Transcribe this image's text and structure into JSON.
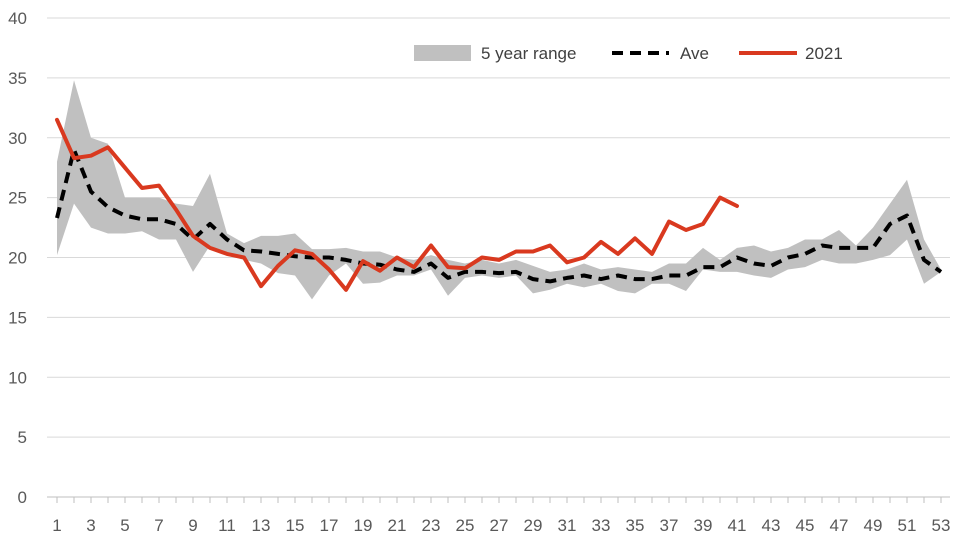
{
  "chart_data": {
    "type": "line",
    "title": "",
    "xlabel": "",
    "ylabel": "",
    "ylim": [
      0,
      40
    ],
    "xlim": [
      1,
      53
    ],
    "grid": "horizontal",
    "legend_position": "top-right",
    "y_ticks": [
      "0",
      "5",
      "10",
      "15",
      "20",
      "25",
      "30",
      "35",
      "40"
    ],
    "x_ticks": [
      "1",
      "3",
      "5",
      "7",
      "9",
      "11",
      "13",
      "15",
      "17",
      "19",
      "21",
      "23",
      "25",
      "27",
      "29",
      "31",
      "33",
      "35",
      "37",
      "39",
      "41",
      "43",
      "45",
      "47",
      "49",
      "51",
      "53"
    ],
    "legend": [
      {
        "key": "range",
        "label": "5 year range"
      },
      {
        "key": "ave",
        "label": "Ave"
      },
      {
        "key": "y2021",
        "label": "2021"
      }
    ],
    "colors": {
      "range": "#c0c0c0",
      "ave": "#000000",
      "y2021": "#d9391f",
      "grid": "#d9d9d9",
      "axis": "#bfbfbf"
    },
    "x": [
      1,
      2,
      3,
      4,
      5,
      6,
      7,
      8,
      9,
      10,
      11,
      12,
      13,
      14,
      15,
      16,
      17,
      18,
      19,
      20,
      21,
      22,
      23,
      24,
      25,
      26,
      27,
      28,
      29,
      30,
      31,
      32,
      33,
      34,
      35,
      36,
      37,
      38,
      39,
      40,
      41,
      42,
      43,
      44,
      45,
      46,
      47,
      48,
      49,
      50,
      51,
      52,
      53
    ],
    "series": [
      {
        "name": "5 year range",
        "kind": "band",
        "low": [
          20.2,
          24.5,
          22.5,
          22.0,
          22.0,
          22.2,
          21.5,
          21.5,
          18.8,
          21.0,
          20.2,
          19.8,
          19.5,
          18.7,
          18.5,
          16.5,
          18.5,
          19.5,
          17.8,
          17.9,
          18.5,
          18.5,
          19.0,
          16.8,
          18.3,
          18.5,
          18.3,
          18.5,
          17.0,
          17.3,
          17.8,
          17.5,
          17.8,
          17.2,
          17.0,
          17.8,
          17.8,
          17.2,
          19.0,
          18.8,
          18.8,
          18.5,
          18.3,
          19.0,
          19.2,
          19.8,
          19.5,
          19.5,
          19.8,
          20.2,
          21.5,
          17.8,
          18.8
        ],
        "high": [
          28.0,
          34.8,
          30.0,
          29.5,
          25.0,
          25.0,
          25.0,
          24.5,
          24.3,
          27.0,
          22.0,
          21.2,
          21.8,
          21.8,
          22.0,
          20.7,
          20.7,
          20.8,
          20.5,
          20.5,
          20.0,
          19.8,
          20.2,
          19.8,
          19.5,
          19.8,
          19.5,
          19.8,
          19.3,
          18.8,
          19.0,
          19.5,
          19.0,
          19.2,
          19.0,
          18.8,
          19.5,
          19.5,
          20.8,
          19.8,
          20.8,
          21.0,
          20.5,
          20.8,
          21.5,
          21.5,
          22.3,
          21.0,
          22.5,
          24.5,
          26.5,
          21.5,
          19.0
        ]
      },
      {
        "name": "Ave",
        "kind": "dashed",
        "values": [
          23.3,
          29.0,
          25.5,
          24.2,
          23.5,
          23.2,
          23.2,
          22.8,
          21.5,
          22.8,
          21.5,
          20.6,
          20.5,
          20.3,
          20.1,
          20.0,
          20.0,
          19.8,
          19.5,
          19.4,
          19.0,
          18.8,
          19.5,
          18.3,
          18.8,
          18.8,
          18.7,
          18.8,
          18.2,
          18.0,
          18.3,
          18.5,
          18.2,
          18.5,
          18.2,
          18.2,
          18.5,
          18.5,
          19.2,
          19.2,
          20.0,
          19.5,
          19.3,
          20.0,
          20.3,
          21.0,
          20.8,
          20.8,
          20.8,
          22.8,
          23.5,
          19.8,
          18.8
        ]
      },
      {
        "name": "2021",
        "kind": "solid",
        "values": [
          31.5,
          28.3,
          28.5,
          29.2,
          27.5,
          25.8,
          26.0,
          24.0,
          21.8,
          20.8,
          20.3,
          20.0,
          17.6,
          19.3,
          20.6,
          20.3,
          19.0,
          17.3,
          19.7,
          18.9,
          20.0,
          19.2,
          21.0,
          19.2,
          19.1,
          20.0,
          19.8,
          20.5,
          20.5,
          21.0,
          19.6,
          20.0,
          21.3,
          20.3,
          21.6,
          20.3,
          23.0,
          22.3,
          22.8,
          25.0,
          24.3,
          null,
          null,
          null,
          null,
          null,
          null,
          null,
          null,
          null,
          null,
          null,
          null
        ]
      }
    ]
  }
}
